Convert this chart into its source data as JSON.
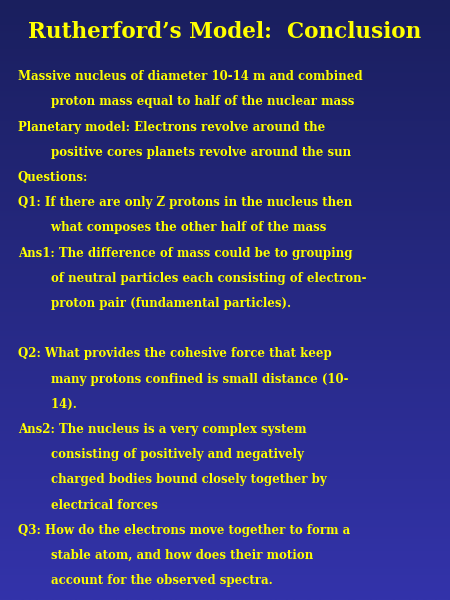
{
  "title": "Rutherford’s Model:  Conclusion",
  "bg_top": "#1a1f5e",
  "bg_bottom": "#3333aa",
  "title_color": "#ffff00",
  "text_color": "#ffff00",
  "title_fontsize": 15.5,
  "body_fontsize": 8.5,
  "lines": [
    {
      "text": "Massive nucleus of diameter 10-14 m and combined",
      "extra_before": 0.01
    },
    {
      "text": "        proton mass equal to half of the nuclear mass",
      "extra_before": 0
    },
    {
      "text": "Planetary model: Electrons revolve around the",
      "extra_before": 0
    },
    {
      "text": "        positive cores planets revolve around the sun",
      "extra_before": 0
    },
    {
      "text": "Questions:",
      "extra_before": 0
    },
    {
      "text": "Q1: If there are only Z protons in the nucleus then",
      "extra_before": 0
    },
    {
      "text": "        what composes the other half of the mass",
      "extra_before": 0
    },
    {
      "text": "Ans1: The difference of mass could be to grouping",
      "extra_before": 0
    },
    {
      "text": "        of neutral particles each consisting of electron-",
      "extra_before": 0
    },
    {
      "text": "        proton pair (fundamental particles).",
      "extra_before": 0
    },
    {
      "text": "",
      "extra_before": 0
    },
    {
      "text": "Q2: What provides the cohesive force that keep",
      "extra_before": 0
    },
    {
      "text": "        many protons confined is small distance (10-",
      "extra_before": 0
    },
    {
      "text": "        14).",
      "extra_before": 0
    },
    {
      "text": "Ans2: The nucleus is a very complex system",
      "extra_before": 0
    },
    {
      "text": "        consisting of positively and negatively",
      "extra_before": 0
    },
    {
      "text": "        charged bodies bound closely together by",
      "extra_before": 0
    },
    {
      "text": "        electrical forces",
      "extra_before": 0
    },
    {
      "text": "Q3: How do the electrons move together to form a",
      "extra_before": 0
    },
    {
      "text": "        stable atom, and how does their motion",
      "extra_before": 0
    },
    {
      "text": "        account for the observed spectra.",
      "extra_before": 0
    }
  ]
}
